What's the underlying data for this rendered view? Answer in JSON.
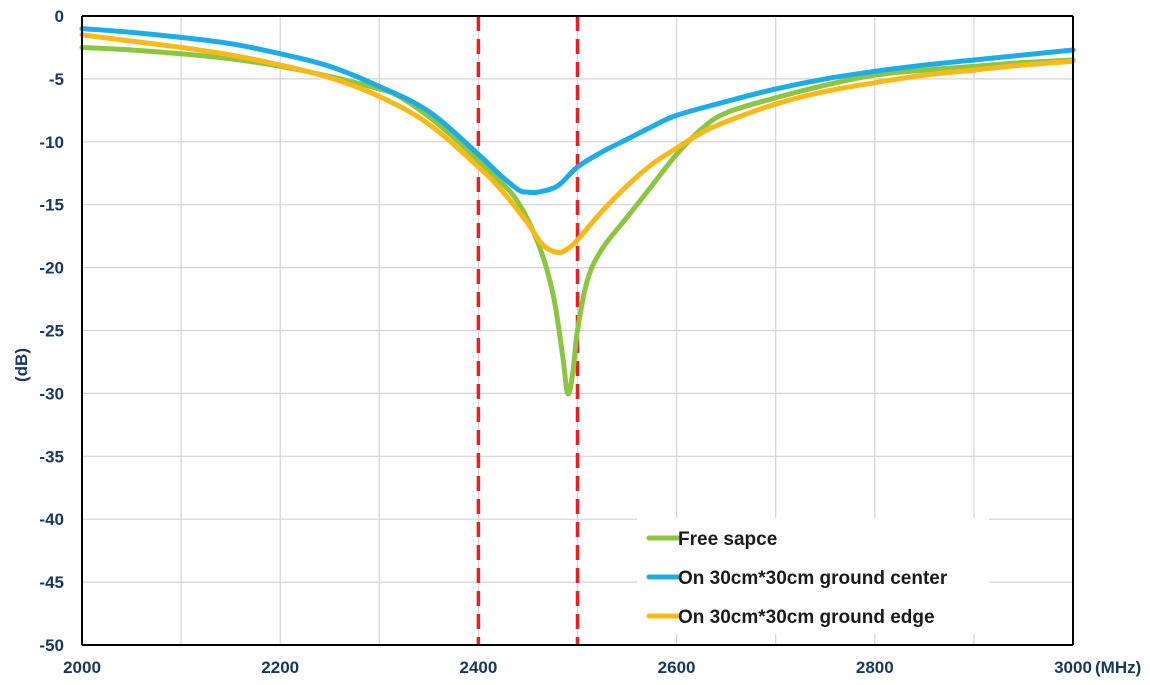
{
  "chart_data": {
    "type": "line",
    "title": "",
    "xlabel": "(MHz)",
    "ylabel": "(dB)",
    "xlim": [
      2000,
      3000
    ],
    "ylim": [
      -50,
      0
    ],
    "x_ticks": [
      2000,
      2200,
      2400,
      2600,
      2800,
      3000
    ],
    "x_minor_grid_step": 100,
    "y_ticks": [
      0,
      -5,
      -10,
      -15,
      -20,
      -25,
      -30,
      -35,
      -40,
      -45,
      -50
    ],
    "grid": true,
    "legend": {
      "placement": "bottom-right"
    },
    "reference_lines": [
      {
        "x": 2400,
        "color": "#ee1c25",
        "style": "dashed"
      },
      {
        "x": 2500,
        "color": "#ee1c25",
        "style": "dashed"
      }
    ],
    "series": [
      {
        "name": "Free sapce",
        "color": "#8cc640",
        "points": [
          [
            2000,
            -2.5
          ],
          [
            2050,
            -2.7
          ],
          [
            2100,
            -3.0
          ],
          [
            2150,
            -3.4
          ],
          [
            2200,
            -4.0
          ],
          [
            2250,
            -4.8
          ],
          [
            2300,
            -5.8
          ],
          [
            2320,
            -6.4
          ],
          [
            2350,
            -8.0
          ],
          [
            2380,
            -10.0
          ],
          [
            2400,
            -11.5
          ],
          [
            2420,
            -13.0
          ],
          [
            2440,
            -14.8
          ],
          [
            2460,
            -18.0
          ],
          [
            2475,
            -22.0
          ],
          [
            2485,
            -27.0
          ],
          [
            2490,
            -30.0
          ],
          [
            2495,
            -28.5
          ],
          [
            2500,
            -25.0
          ],
          [
            2510,
            -21.0
          ],
          [
            2525,
            -18.5
          ],
          [
            2550,
            -16.0
          ],
          [
            2575,
            -13.5
          ],
          [
            2600,
            -11.0
          ],
          [
            2625,
            -9.0
          ],
          [
            2650,
            -7.7
          ],
          [
            2700,
            -6.5
          ],
          [
            2750,
            -5.5
          ],
          [
            2800,
            -4.7
          ],
          [
            2850,
            -4.3
          ],
          [
            2900,
            -4.0
          ],
          [
            2950,
            -3.7
          ],
          [
            3000,
            -3.5
          ]
        ]
      },
      {
        "name": "On 30cm*30cm ground center",
        "color": "#1cace8",
        "points": [
          [
            2000,
            -1.0
          ],
          [
            2050,
            -1.3
          ],
          [
            2100,
            -1.7
          ],
          [
            2150,
            -2.2
          ],
          [
            2200,
            -3.0
          ],
          [
            2250,
            -4.0
          ],
          [
            2300,
            -5.6
          ],
          [
            2350,
            -7.6
          ],
          [
            2400,
            -11.0
          ],
          [
            2420,
            -12.5
          ],
          [
            2440,
            -13.8
          ],
          [
            2450,
            -14.0
          ],
          [
            2460,
            -14.0
          ],
          [
            2480,
            -13.5
          ],
          [
            2500,
            -12.0
          ],
          [
            2525,
            -10.8
          ],
          [
            2550,
            -9.8
          ],
          [
            2575,
            -8.8
          ],
          [
            2600,
            -7.9
          ],
          [
            2650,
            -6.8
          ],
          [
            2700,
            -5.8
          ],
          [
            2750,
            -5.0
          ],
          [
            2800,
            -4.4
          ],
          [
            2850,
            -3.9
          ],
          [
            2900,
            -3.5
          ],
          [
            2950,
            -3.1
          ],
          [
            3000,
            -2.7
          ]
        ]
      },
      {
        "name": "On 30cm*30cm ground edge",
        "color": "#fbb917",
        "points": [
          [
            2000,
            -1.5
          ],
          [
            2050,
            -2.0
          ],
          [
            2100,
            -2.5
          ],
          [
            2150,
            -3.1
          ],
          [
            2200,
            -3.9
          ],
          [
            2250,
            -4.9
          ],
          [
            2300,
            -6.4
          ],
          [
            2350,
            -8.6
          ],
          [
            2400,
            -12.0
          ],
          [
            2425,
            -14.0
          ],
          [
            2450,
            -16.5
          ],
          [
            2465,
            -18.2
          ],
          [
            2480,
            -18.8
          ],
          [
            2490,
            -18.5
          ],
          [
            2500,
            -17.8
          ],
          [
            2525,
            -15.5
          ],
          [
            2550,
            -13.5
          ],
          [
            2575,
            -11.8
          ],
          [
            2600,
            -10.5
          ],
          [
            2625,
            -9.3
          ],
          [
            2650,
            -8.4
          ],
          [
            2700,
            -7.0
          ],
          [
            2750,
            -6.0
          ],
          [
            2800,
            -5.3
          ],
          [
            2850,
            -4.7
          ],
          [
            2900,
            -4.3
          ],
          [
            2950,
            -3.9
          ],
          [
            3000,
            -3.6
          ]
        ]
      }
    ]
  }
}
